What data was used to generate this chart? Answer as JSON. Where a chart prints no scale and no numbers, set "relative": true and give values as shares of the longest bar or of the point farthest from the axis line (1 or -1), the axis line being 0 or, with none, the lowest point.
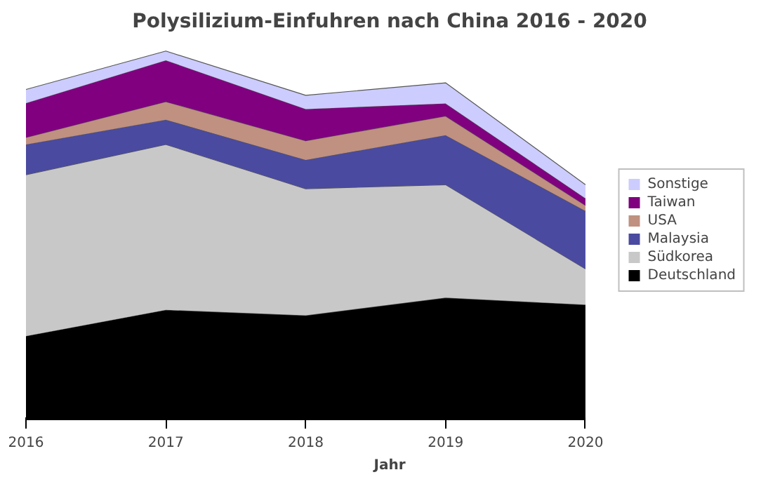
{
  "chart_data": {
    "type": "area",
    "title": "Polysilizium-Einfuhren nach China 2016 - 2020",
    "xlabel": "Jahr",
    "categories": [
      "2016",
      "2017",
      "2018",
      "2019",
      "2020"
    ],
    "stacked": true,
    "relative": true,
    "legend": "right",
    "series": [
      {
        "name": "Deutschland",
        "color": "#000000",
        "values": [
          0.228,
          0.299,
          0.284,
          0.332,
          0.313
        ]
      },
      {
        "name": "Südkorea",
        "color": "#c8c8c8",
        "values": [
          0.437,
          0.448,
          0.343,
          0.306,
          0.097
        ]
      },
      {
        "name": "Malaysia",
        "color": "#4a4aa0",
        "values": [
          0.082,
          0.067,
          0.078,
          0.134,
          0.157
        ]
      },
      {
        "name": "USA",
        "color": "#c09080",
        "values": [
          0.019,
          0.049,
          0.052,
          0.052,
          0.015
        ]
      },
      {
        "name": "Taiwan",
        "color": "#800080",
        "values": [
          0.093,
          0.112,
          0.086,
          0.034,
          0.019
        ]
      },
      {
        "name": "Sonstige",
        "color": "#ccccff",
        "values": [
          0.037,
          0.025,
          0.037,
          0.056,
          0.037
        ]
      }
    ]
  }
}
